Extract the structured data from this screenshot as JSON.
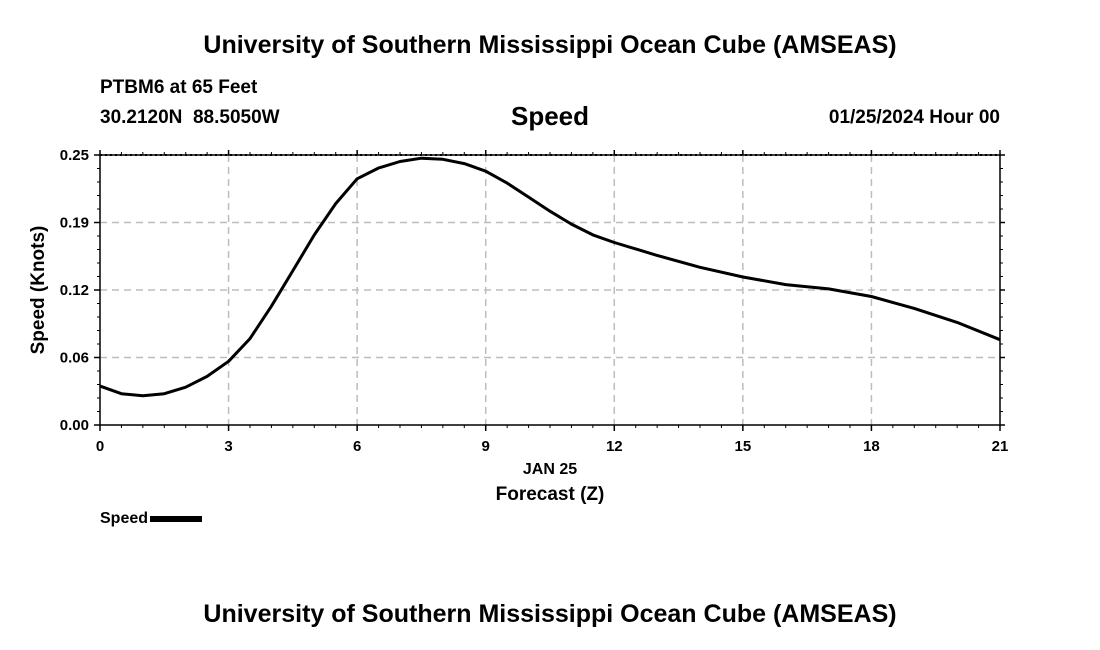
{
  "header": {
    "title": "University of Southern Mississippi Ocean Cube (AMSEAS)",
    "station": "PTBM6 at 65 Feet",
    "coordinates": "30.2120N  88.5050W",
    "datetime": "01/25/2024 Hour 00",
    "footer_title": "University of Southern Mississippi Ocean Cube (AMSEAS)"
  },
  "chart_data": {
    "type": "line",
    "title": "Speed",
    "xlabel": "Forecast (Z)",
    "x_date_label": "JAN 25",
    "ylabel": "Speed (Knots)",
    "xlim": [
      0,
      21
    ],
    "ylim": [
      0,
      0.25
    ],
    "x_ticks": [
      0,
      3,
      6,
      9,
      12,
      15,
      18,
      21
    ],
    "x_tick_labels": [
      "0",
      "3",
      "6",
      "9",
      "12",
      "15",
      "18",
      "21"
    ],
    "y_ticks": [
      0.0,
      0.0625,
      0.125,
      0.1875,
      0.25
    ],
    "y_tick_labels": [
      "0.00",
      "0.06",
      "0.12",
      "0.19",
      "0.25"
    ],
    "grid": true,
    "legend": "bottom-left",
    "series": [
      {
        "name": "Speed",
        "color": "#000000",
        "x": [
          0,
          0.5,
          1,
          1.5,
          2,
          2.5,
          3,
          3.5,
          4,
          4.5,
          5,
          5.5,
          6,
          6.5,
          7,
          7.5,
          8,
          8.5,
          9,
          9.5,
          10,
          10.5,
          11,
          11.5,
          12,
          13,
          14,
          15,
          16,
          17,
          18,
          19,
          20,
          21
        ],
        "values": [
          0.036,
          0.029,
          0.027,
          0.029,
          0.035,
          0.045,
          0.059,
          0.08,
          0.11,
          0.143,
          0.176,
          0.205,
          0.228,
          0.238,
          0.244,
          0.247,
          0.246,
          0.242,
          0.235,
          0.224,
          0.211,
          0.198,
          0.186,
          0.176,
          0.169,
          0.157,
          0.146,
          0.137,
          0.13,
          0.126,
          0.119,
          0.108,
          0.095,
          0.079
        ]
      }
    ]
  }
}
